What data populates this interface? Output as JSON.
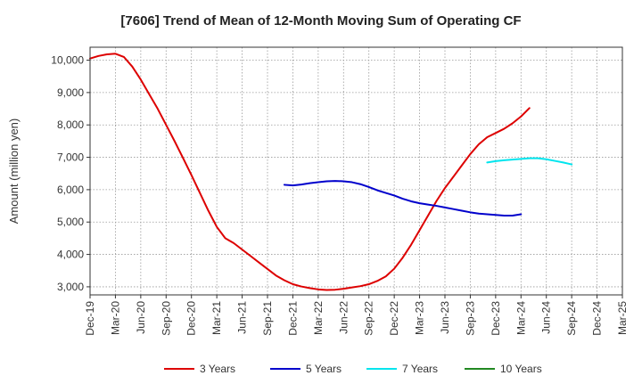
{
  "chart_data": {
    "type": "line",
    "title": "[7606]  Trend of Mean of 12-Month Moving Sum of Operating CF",
    "xlabel": "",
    "ylabel": "Amount (million yen)",
    "ylim": [
      2750,
      10400
    ],
    "yticks": [
      3000,
      4000,
      5000,
      6000,
      7000,
      8000,
      9000,
      10000
    ],
    "ytick_labels": [
      "3,000",
      "4,000",
      "5,000",
      "6,000",
      "7,000",
      "8,000",
      "9,000",
      "10,000"
    ],
    "x_start": "2019-12",
    "x_end": "2025-03",
    "xtick_labels": [
      "Dec-19",
      "Mar-20",
      "Jun-20",
      "Sep-20",
      "Dec-20",
      "Mar-21",
      "Jun-21",
      "Sep-21",
      "Dec-21",
      "Mar-22",
      "Jun-22",
      "Sep-22",
      "Dec-22",
      "Mar-23",
      "Jun-23",
      "Sep-23",
      "Dec-23",
      "Mar-24",
      "Jun-24",
      "Sep-24",
      "Dec-24",
      "Mar-25"
    ],
    "grid": true,
    "legend_position": "bottom",
    "series": [
      {
        "name": "3 Years",
        "color": "#dd0000",
        "start": "2019-12",
        "values": [
          10050,
          10130,
          10180,
          10200,
          10100,
          9800,
          9400,
          8950,
          8500,
          8000,
          7500,
          6980,
          6450,
          5900,
          5350,
          4850,
          4500,
          4350,
          4150,
          3950,
          3750,
          3550,
          3350,
          3200,
          3080,
          3010,
          2960,
          2920,
          2900,
          2910,
          2940,
          2980,
          3020,
          3080,
          3180,
          3320,
          3560,
          3900,
          4300,
          4750,
          5200,
          5650,
          6050,
          6400,
          6750,
          7100,
          7400,
          7620,
          7750,
          7880,
          8050,
          8260,
          8520
        ]
      },
      {
        "name": "5 Years",
        "color": "#0000cc",
        "start": "2021-11",
        "values": [
          6150,
          6130,
          6160,
          6200,
          6230,
          6260,
          6270,
          6260,
          6230,
          6170,
          6080,
          5980,
          5900,
          5820,
          5720,
          5640,
          5580,
          5540,
          5500,
          5450,
          5400,
          5350,
          5300,
          5260,
          5240,
          5220,
          5200,
          5200,
          5240
        ]
      },
      {
        "name": "7 Years",
        "color": "#00e5ee",
        "start": "2023-11",
        "values": [
          6840,
          6880,
          6910,
          6930,
          6950,
          6970,
          6970,
          6940,
          6890,
          6840,
          6780
        ]
      },
      {
        "name": "10 Years",
        "color": "#228822",
        "start": "2024-12",
        "values": []
      }
    ]
  }
}
